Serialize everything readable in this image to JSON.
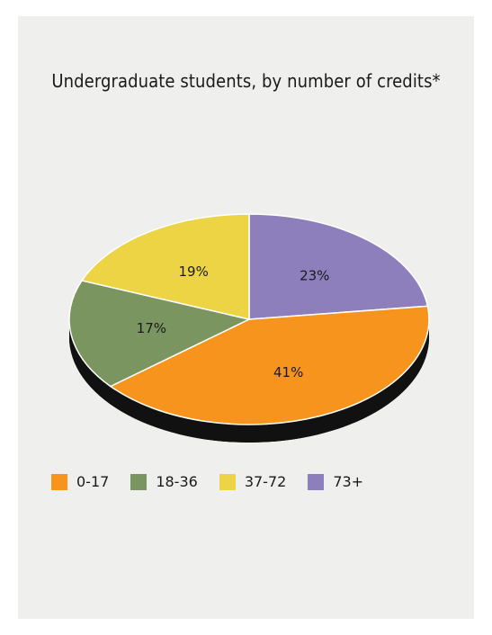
{
  "chart_data": {
    "type": "pie",
    "title": "Undergraduate students, by number of credits*",
    "categories": [
      "0-17",
      "18-36",
      "37-72",
      "73+"
    ],
    "values": [
      41,
      17,
      19,
      23
    ],
    "labels": [
      "41%",
      "17%",
      "19%",
      "23%"
    ],
    "colors": [
      "#f7941d",
      "#7b9560",
      "#ecd445",
      "#8c7fbb"
    ],
    "legend": "bottom",
    "style": "3d-tilted"
  }
}
